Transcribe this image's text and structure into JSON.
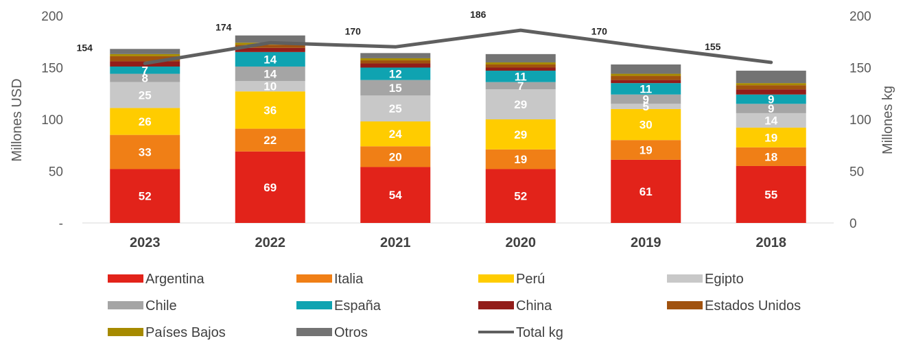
{
  "chart_data": {
    "type": "bar",
    "stacked": true,
    "categories": [
      "2023",
      "2022",
      "2021",
      "2020",
      "2019",
      "2018"
    ],
    "y_left": {
      "label": "Millones USD",
      "ylim": [
        0,
        200
      ],
      "ticks": [
        0,
        50,
        100,
        150,
        200
      ],
      "tick_labels": [
        "-",
        "50",
        "100",
        "150",
        "200"
      ]
    },
    "y_right": {
      "label": "Millones kg",
      "ylim": [
        0,
        200
      ],
      "ticks": [
        0,
        50,
        100,
        150,
        200
      ],
      "tick_labels": [
        "0",
        "50",
        "100",
        "150",
        "200"
      ]
    },
    "series": [
      {
        "name": "Argentina",
        "color": "#e2231a",
        "values": [
          52,
          69,
          54,
          52,
          61,
          55
        ],
        "labels": [
          "52",
          "69",
          "54",
          "52",
          "61",
          "55"
        ]
      },
      {
        "name": "Italia",
        "color": "#f07f16",
        "values": [
          33,
          22,
          20,
          19,
          19,
          18
        ],
        "labels": [
          "33",
          "22",
          "20",
          "19",
          "19",
          "18"
        ]
      },
      {
        "name": "Perú",
        "color": "#ffcc00",
        "values": [
          26,
          36,
          24,
          29,
          30,
          19
        ],
        "labels": [
          "26",
          "36",
          "24",
          "29",
          "30",
          "19"
        ]
      },
      {
        "name": "Egipto",
        "color": "#c8c8c8",
        "values": [
          25,
          10,
          25,
          29,
          5,
          14
        ],
        "labels": [
          "25",
          "10",
          "25",
          "29",
          "5",
          "14"
        ]
      },
      {
        "name": "Chile",
        "color": "#a5a5a5",
        "values": [
          8,
          14,
          15,
          7,
          9,
          9
        ],
        "labels": [
          "8",
          "14",
          "15",
          "7",
          "9",
          "9"
        ]
      },
      {
        "name": "España",
        "color": "#0fa3b1",
        "values": [
          7,
          14,
          12,
          11,
          11,
          9
        ],
        "labels": [
          "7",
          "14",
          "12",
          "11",
          "11",
          "9"
        ]
      },
      {
        "name": "China",
        "color": "#921d1a",
        "values": [
          5,
          4,
          4,
          3,
          3,
          5
        ],
        "labels": [
          "",
          "",
          "",
          "",
          "",
          ""
        ]
      },
      {
        "name": "Estados Unidos",
        "color": "#a0520f",
        "values": [
          5,
          3,
          3,
          3,
          4,
          4
        ],
        "labels": [
          "",
          "",
          "",
          "",
          "",
          ""
        ]
      },
      {
        "name": "Países Bajos",
        "color": "#a68a00",
        "values": [
          2,
          2,
          2,
          2,
          2,
          2
        ],
        "labels": [
          "",
          "",
          "",
          "",
          "",
          ""
        ]
      },
      {
        "name": "Otros",
        "color": "#737373",
        "values": [
          5,
          7,
          5,
          8,
          9,
          12
        ],
        "labels": [
          "",
          "",
          "",
          "",
          "",
          ""
        ]
      }
    ],
    "line": {
      "name": "Total kg",
      "color": "#5f5f5f",
      "axis": "right",
      "values": [
        154,
        174,
        170,
        186,
        170,
        155
      ],
      "labels": [
        "154",
        "174",
        "170",
        "186",
        "170",
        "155"
      ]
    },
    "legend": {
      "position": "bottom",
      "columns": 4
    },
    "grid": false
  }
}
